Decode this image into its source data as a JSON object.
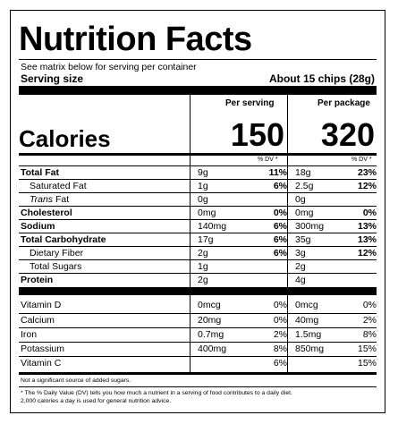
{
  "title": "Nutrition Facts",
  "serving_matrix_note": "See matrix below for serving per container",
  "serving_size": {
    "label": "Serving size",
    "value": "About 15 chips (28g)"
  },
  "columns": {
    "per_serving": "Per serving",
    "per_package": "Per package"
  },
  "calories": {
    "label": "Calories",
    "per_serving": "150",
    "per_package": "320"
  },
  "dv_header": "% DV *",
  "nutrients": [
    {
      "name": "Total Fat",
      "serving_amount": "9g",
      "serving_dv": "11%",
      "package_amount": "18g",
      "package_dv": "23%"
    },
    {
      "name": "Saturated Fat",
      "serving_amount": "1g",
      "serving_dv": "6%",
      "package_amount": "2.5g",
      "package_dv": "12%"
    },
    {
      "name_italic": "Trans",
      "name_rest": " Fat",
      "serving_amount": "0g",
      "serving_dv": "",
      "package_amount": "0g",
      "package_dv": ""
    },
    {
      "name": "Cholesterol",
      "serving_amount": "0mg",
      "serving_dv": "0%",
      "package_amount": "0mg",
      "package_dv": "0%"
    },
    {
      "name": "Sodium",
      "serving_amount": "140mg",
      "serving_dv": "6%",
      "package_amount": "300mg",
      "package_dv": "13%"
    },
    {
      "name": "Total Carbohydrate",
      "serving_amount": "17g",
      "serving_dv": "6%",
      "package_amount": "35g",
      "package_dv": "13%"
    },
    {
      "name": "Dietary Fiber",
      "serving_amount": "2g",
      "serving_dv": "6%",
      "package_amount": "3g",
      "package_dv": "12%"
    },
    {
      "name": "Total Sugars",
      "serving_amount": "1g",
      "serving_dv": "",
      "package_amount": "2g",
      "package_dv": ""
    },
    {
      "name": "Protein",
      "serving_amount": "2g",
      "serving_dv": "",
      "package_amount": "4g",
      "package_dv": ""
    }
  ],
  "vitamins": [
    {
      "name": "Vitamin D",
      "serving_amount": "0mcg",
      "serving_dv": "0%",
      "package_amount": "0mcg",
      "package_dv": "0%"
    },
    {
      "name": "Calcium",
      "serving_amount": "20mg",
      "serving_dv": "0%",
      "package_amount": "40mg",
      "package_dv": "2%"
    },
    {
      "name": "Iron",
      "serving_amount": "0.7mg",
      "serving_dv": "2%",
      "package_amount": "1.5mg",
      "package_dv": "8%"
    },
    {
      "name": "Potassium",
      "serving_amount": "400mg",
      "serving_dv": "8%",
      "package_amount": "850mg",
      "package_dv": "15%"
    },
    {
      "name": "Vitamin C",
      "serving_amount": "",
      "serving_dv": "6%",
      "package_amount": "",
      "package_dv": "15%"
    }
  ],
  "footnotes": {
    "added_sugars": "Not a significant source of added sugars.",
    "dv_line1": "* The % Daily Value (DV) tells you how much a nutrient in a serving of food contributes to a daily diet.",
    "dv_line2": "2,000 calories a day is used for general nutrition advice."
  }
}
